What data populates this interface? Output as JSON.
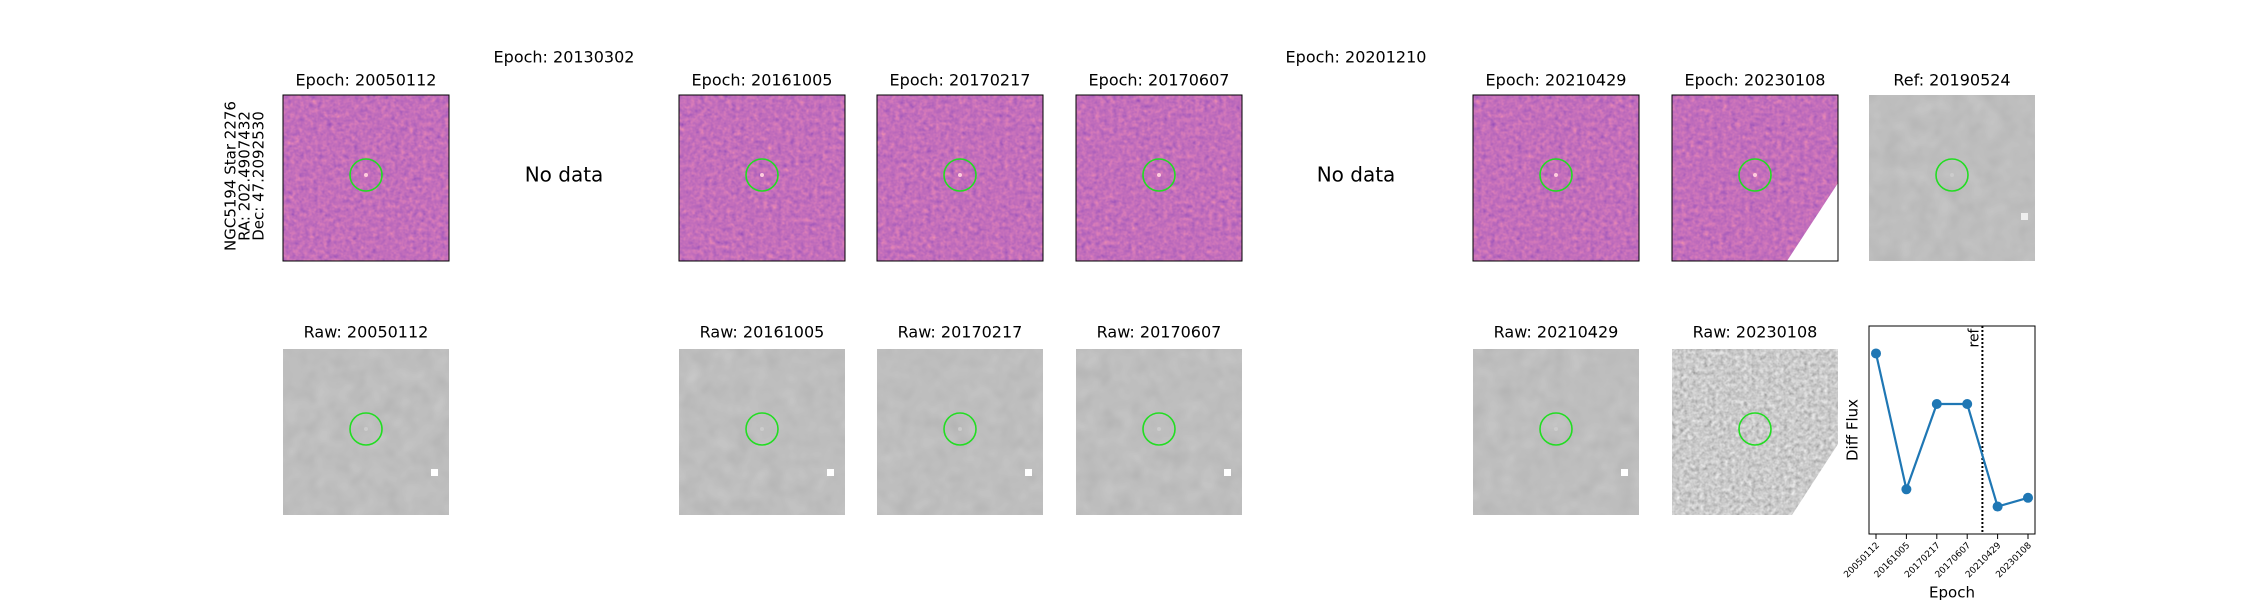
{
  "star_label": [
    "NGC5194 Star 2276",
    "RA: 202.4907432",
    "Dec: 47.2092530"
  ],
  "epoch_row": [
    {
      "title": "Epoch: 20050112"
    },
    {
      "title": "Epoch: 20130302",
      "message": "No data"
    },
    {
      "title": "Epoch: 20161005"
    },
    {
      "title": "Epoch: 20170217"
    },
    {
      "title": "Epoch: 20170607"
    },
    {
      "title": "Epoch: 20201210",
      "message": "No data"
    },
    {
      "title": "Epoch: 20210429"
    },
    {
      "title": "Epoch: 20230108"
    },
    {
      "title": "Ref: 20190524"
    }
  ],
  "raw_row": [
    "Raw: 20050112",
    null,
    "Raw: 20161005",
    "Raw: 20170217",
    "Raw: 20170607",
    null,
    "Raw: 20210429",
    "Raw: 20230108"
  ],
  "chart_data": {
    "type": "line",
    "xlabel": "Epoch",
    "ylabel": "Diff Flux",
    "categories": [
      "20050112",
      "20161005",
      "20170217",
      "20170607",
      "20210429",
      "20230108"
    ],
    "values": [
      86.8,
      21.5,
      62.5,
      62.5,
      13.2,
      17.4
    ],
    "color": "#1f77b4",
    "ylim": [
      0,
      100
    ],
    "ref_line": {
      "label": "ref",
      "position": 3.5
    }
  }
}
